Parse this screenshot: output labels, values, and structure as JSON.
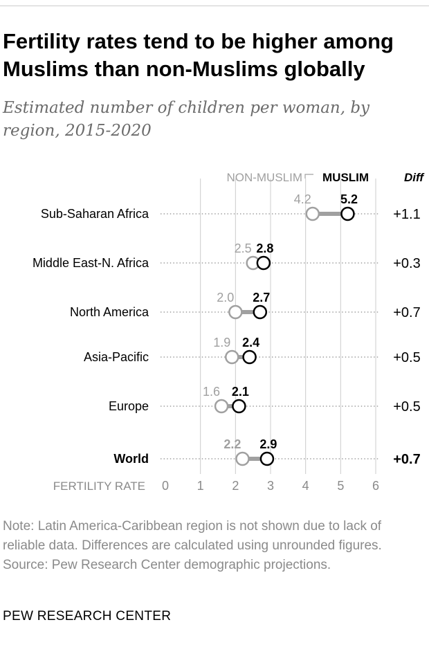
{
  "title": "Fertility rates tend to be higher among Muslims than non-Muslims globally",
  "subtitle": "Estimated number of children per woman, by region, 2015-2020",
  "note": "Note: Latin America-Caribbean region is not shown due to lack of reliable data. Differences are calculated using unrounded figures.",
  "source": "Source: Pew Research Center demographic projections.",
  "brand": "PEW RESEARCH CENTER",
  "chart_data": {
    "type": "dot",
    "categories": [
      "Sub-Saharan Africa",
      "Middle East-N. Africa",
      "North America",
      "Asia-Pacific",
      "Europe",
      "World"
    ],
    "series": [
      {
        "name": "NON-MUSLIM",
        "values": [
          4.2,
          2.5,
          2.0,
          1.9,
          1.6,
          2.2
        ],
        "labels": [
          "4.2",
          "2.5",
          "2.0",
          "1.9",
          "1.6",
          "2.2"
        ]
      },
      {
        "name": "MUSLIM",
        "values": [
          5.2,
          2.8,
          2.7,
          2.4,
          2.1,
          2.9
        ],
        "labels": [
          "5.2",
          "2.8",
          "2.7",
          "2.4",
          "2.1",
          "2.9"
        ]
      }
    ],
    "diff_header": "Diff",
    "diff": [
      "+1.1",
      "+0.3",
      "+0.7",
      "+0.5",
      "+0.5",
      "+0.7"
    ],
    "highlight_category": "World",
    "xlabel": "FERTILITY RATE",
    "xlim": [
      0,
      6
    ],
    "xticks": [
      "0",
      "1",
      "2",
      "3",
      "4",
      "5",
      "6"
    ],
    "grid": true,
    "colors": {
      "non_muslim": "#a0a0a0",
      "muslim": "#000000",
      "connector": "#a0a0a0",
      "grid": "#cccccc",
      "dotted": "#9a9a9a",
      "axis_text": "#8a8a8a"
    }
  }
}
